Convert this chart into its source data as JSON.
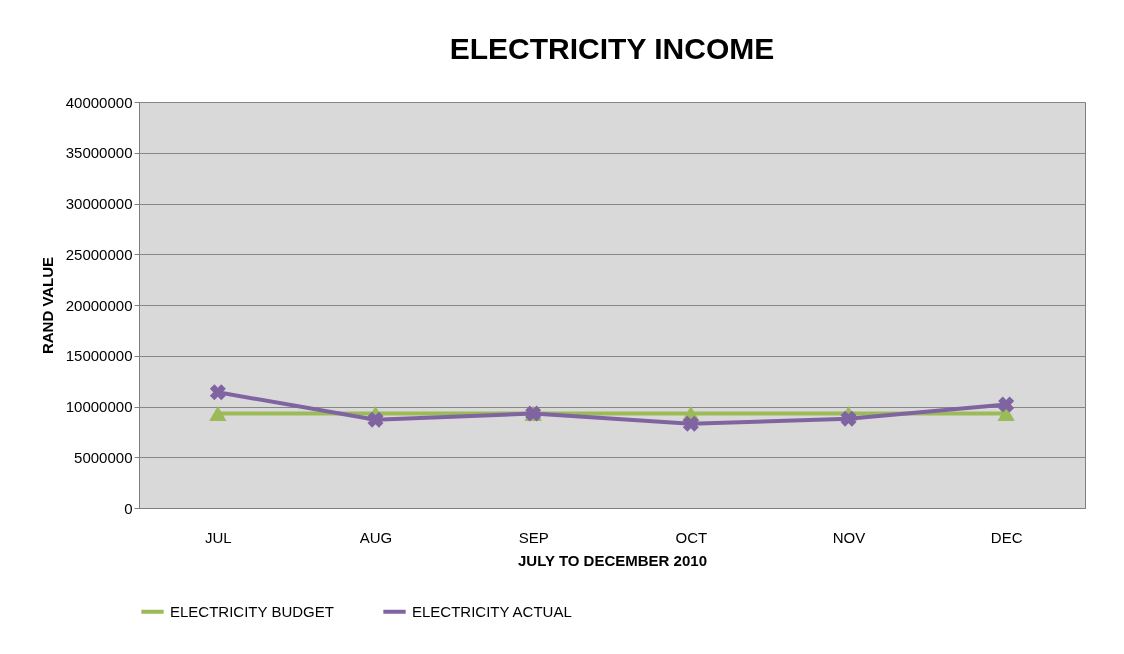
{
  "chart_data": {
    "type": "line",
    "title": "ELECTRICITY INCOME",
    "xlabel": "JULY TO DECEMBER 2010",
    "ylabel": "RAND VALUE",
    "categories": [
      "JUL",
      "AUG",
      "SEP",
      "OCT",
      "NOV",
      "DEC"
    ],
    "series": [
      {
        "name": "ELECTRICITY BUDGET",
        "color": "#9bbb59",
        "marker": "triangle",
        "values": [
          9300000,
          9300000,
          9300000,
          9300000,
          9300000,
          9300000
        ]
      },
      {
        "name": "ELECTRICITY ACTUAL",
        "color": "#8064a2",
        "marker": "cross",
        "values": [
          11400000,
          8700000,
          9300000,
          8300000,
          8800000,
          10200000
        ]
      }
    ],
    "ylim": [
      0,
      40000000
    ],
    "yticks": [
      0,
      5000000,
      10000000,
      15000000,
      20000000,
      25000000,
      30000000,
      35000000,
      40000000
    ],
    "grid": "y",
    "legend": "bottom"
  }
}
